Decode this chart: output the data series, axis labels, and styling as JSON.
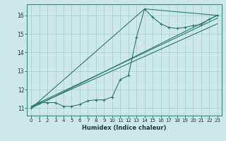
{
  "xlabel": "Humidex (Indice chaleur)",
  "ylabel": "",
  "bg_color": "#cce8e8",
  "grid_color": "#aacece",
  "line_color": "#2e7a6e",
  "xlim": [
    -0.5,
    23.5
  ],
  "ylim": [
    10.6,
    16.6
  ],
  "xticks": [
    0,
    1,
    2,
    3,
    4,
    5,
    6,
    7,
    8,
    9,
    10,
    11,
    12,
    13,
    14,
    15,
    16,
    17,
    18,
    19,
    20,
    21,
    22,
    23
  ],
  "yticks": [
    11,
    12,
    13,
    14,
    15,
    16
  ],
  "series1_x": [
    0,
    1,
    2,
    3,
    4,
    5,
    6,
    7,
    8,
    9,
    10,
    11,
    12,
    13,
    14,
    15,
    16,
    17,
    18,
    19,
    20,
    21,
    22,
    23
  ],
  "series1_y": [
    11.0,
    11.3,
    11.3,
    11.3,
    11.1,
    11.1,
    11.2,
    11.4,
    11.45,
    11.45,
    11.6,
    12.55,
    12.75,
    14.8,
    16.35,
    15.9,
    15.55,
    15.35,
    15.3,
    15.35,
    15.45,
    15.5,
    15.8,
    16.0
  ],
  "trend1_x": [
    0,
    23
  ],
  "trend1_y": [
    11.0,
    16.0
  ],
  "trend2_x": [
    0,
    23
  ],
  "trend2_y": [
    11.1,
    15.85
  ],
  "trend3_x": [
    0,
    23
  ],
  "trend3_y": [
    11.05,
    15.55
  ],
  "trend4_x": [
    0,
    14,
    23
  ],
  "trend4_y": [
    11.0,
    16.35,
    16.0
  ]
}
